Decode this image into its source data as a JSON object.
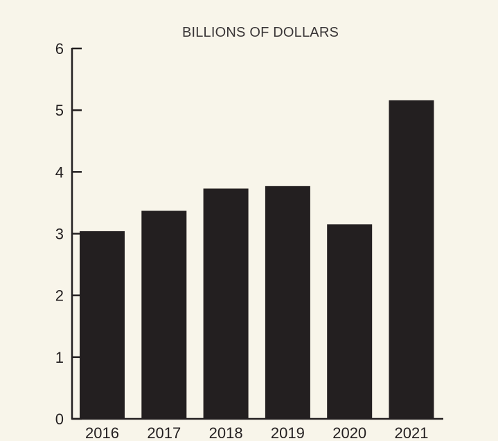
{
  "chart_data": {
    "type": "bar",
    "title": "BILLIONS OF DOLLARS",
    "categories": [
      "2016",
      "2017",
      "2018",
      "2019",
      "2020",
      "2021"
    ],
    "values": [
      3.04,
      3.37,
      3.73,
      3.77,
      3.15,
      5.16
    ],
    "ylim": [
      0,
      6
    ],
    "yticks": [
      "0",
      "1",
      "2",
      "3",
      "4",
      "5",
      "6"
    ],
    "xlabel": "",
    "ylabel": "",
    "grid": false,
    "legend": "none",
    "colors": {
      "bar": "#231f20",
      "background": "#f8f5ea",
      "axis": "#231f20"
    }
  }
}
